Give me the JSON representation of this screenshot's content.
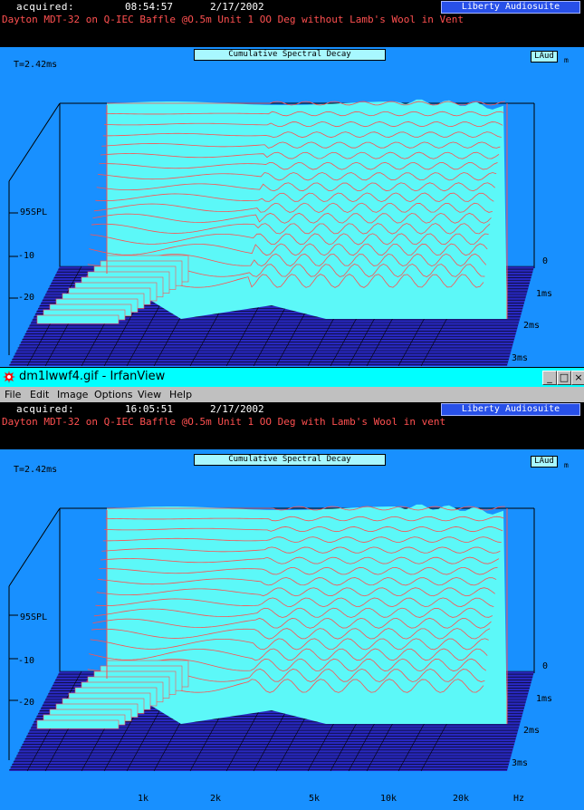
{
  "top": {
    "acquired_label": "acquired:",
    "time": "08:54:57",
    "date": "2/17/2002",
    "brand": "Liberty Audiosuite",
    "description": "Dayton MDT-32 on Q-IEC Baffle @O.5m Unit 1 OO Deg without Lamb's Wool in Vent",
    "chart_title": "Cumulative Spectral Decay",
    "t_label": "T=2.42ms",
    "logo_label": "LAud",
    "logo_sub": "m"
  },
  "bottom": {
    "acquired_label": "acquired:",
    "time": "16:05:51",
    "date": "2/17/2002",
    "brand": "Liberty Audiosuite",
    "description": "Dayton MDT-32 on Q-IEC Baffle @O.5m Unit 1 OO Deg with Lamb's Wool in vent",
    "chart_title": "Cumulative Spectral Decay",
    "t_label": "T=2.42ms",
    "logo_label": "LAud",
    "logo_sub": "m"
  },
  "window": {
    "title": "dm1lwwf4.gif - IrfanView",
    "menu": [
      "File",
      "Edit",
      "Image",
      "Options",
      "View",
      "Help"
    ],
    "buttons": {
      "minimize": "_",
      "maximize": "□",
      "close": "×"
    }
  },
  "colors": {
    "background": "#1890ff",
    "surface": "#5cf8f8",
    "trace": "#ff5050",
    "floor": "#2828c0",
    "brand": "#2850e8"
  },
  "chart_data": [
    {
      "type": "area",
      "subtype": "waterfall",
      "title": "Cumulative Spectral Decay",
      "z_ticks": [
        "0",
        "1ms",
        "2ms",
        "3ms"
      ],
      "y_ticks": [
        "95SPL",
        "-10",
        "-20"
      ],
      "x_ticks": []
    },
    {
      "type": "area",
      "subtype": "waterfall",
      "title": "Cumulative Spectral Decay",
      "z_ticks": [
        "0",
        "1ms",
        "2ms",
        "3ms"
      ],
      "y_ticks": [
        "95SPL",
        "-10",
        "-20"
      ],
      "x_ticks": [
        "1k",
        "2k",
        "5k",
        "10k",
        "20k"
      ],
      "x_unit": "Hz"
    }
  ]
}
